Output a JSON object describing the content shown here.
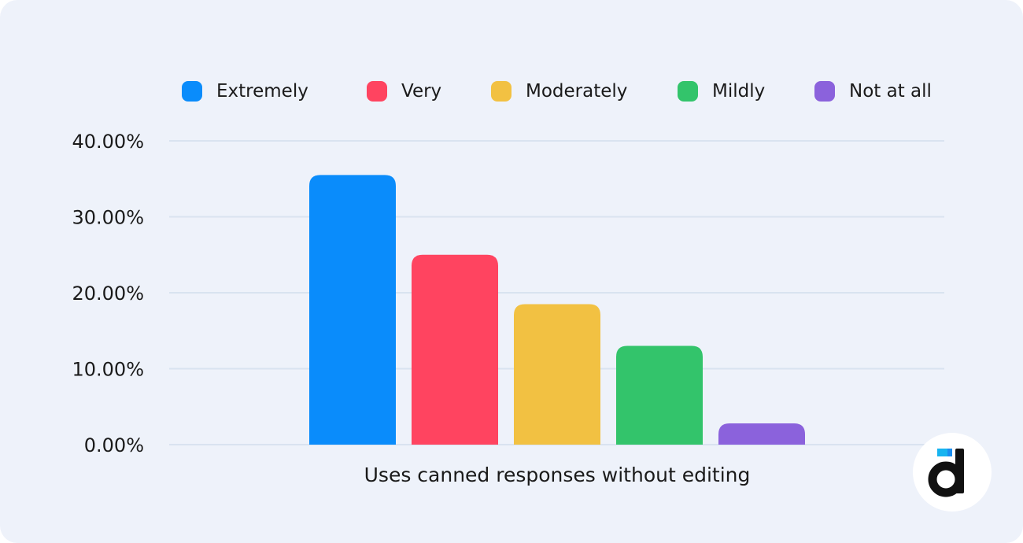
{
  "chart_data": {
    "type": "bar",
    "title": "",
    "xlabel": "Uses canned responses without editing",
    "ylabel": "",
    "categories": [
      "Uses canned responses without editing"
    ],
    "series": [
      {
        "name": "Extremely",
        "color": "#0a8cfb",
        "values": [
          35.5
        ]
      },
      {
        "name": "Very",
        "color": "#ff4460",
        "values": [
          25.0
        ]
      },
      {
        "name": "Moderately",
        "color": "#f2c142",
        "values": [
          18.5
        ]
      },
      {
        "name": "Mildly",
        "color": "#33c46b",
        "values": [
          13.0
        ]
      },
      {
        "name": "Not at all",
        "color": "#8b62dc",
        "values": [
          2.8
        ]
      }
    ],
    "ylim": [
      0,
      40
    ],
    "yticks": [
      0,
      10,
      20,
      30,
      40
    ],
    "ytick_labels": [
      "0.00%",
      "10.00%",
      "20.00%",
      "30.00%",
      "40.00%"
    ],
    "grid": true,
    "legend_position": "top"
  },
  "logo": {
    "icon": "devrev-d-logo-icon"
  }
}
